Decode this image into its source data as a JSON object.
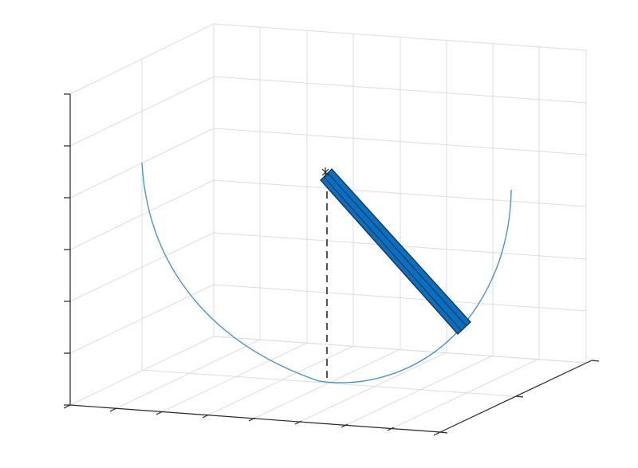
{
  "figure": {
    "background": "#ffffff",
    "grid_color": "#dcdcdc",
    "axis_color": "#262626",
    "arc_color": "#3a8fd0",
    "rod_color": "#0a6fbf",
    "rod_edge_color": "#0b2a45",
    "dashed_line_color": "#555555"
  },
  "scene": {
    "view": "3d-isometric",
    "grid": true,
    "tick_labels_visible": false,
    "elements": [
      "semicircular-arc",
      "rod",
      "dashed-vertical-line",
      "pivot-marker"
    ]
  }
}
